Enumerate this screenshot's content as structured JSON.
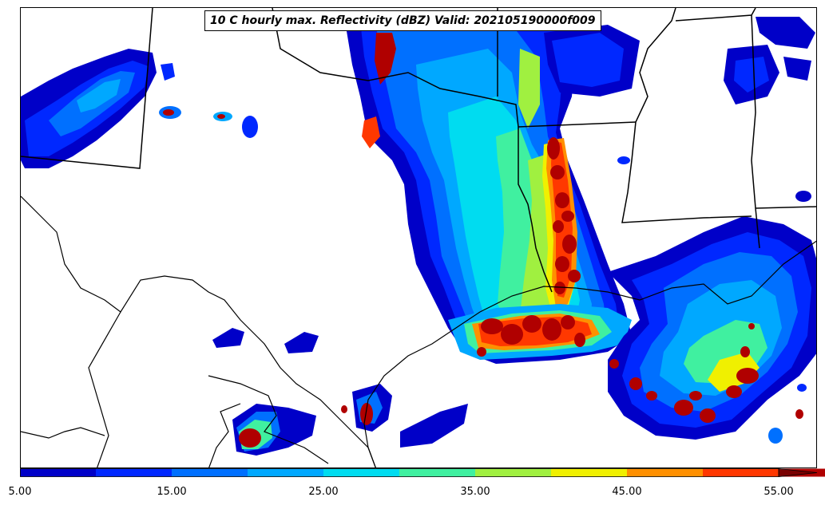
{
  "title": "10 C hourly max. Reflectivity (dBZ) Valid: 202105190000f009",
  "colorbar": {
    "levels": [
      5,
      10,
      15,
      20,
      25,
      30,
      35,
      40,
      45,
      50,
      55
    ],
    "colors": [
      "#0000c8",
      "#0028ff",
      "#0070ff",
      "#00a8ff",
      "#00dcf0",
      "#40f0a0",
      "#a0f040",
      "#f0f000",
      "#ff9000",
      "#ff3800",
      "#b00000"
    ],
    "extend_color": "#7a0000",
    "tick_labels": [
      "5.00",
      "15.00",
      "25.00",
      "35.00",
      "45.00",
      "55.00"
    ]
  }
}
